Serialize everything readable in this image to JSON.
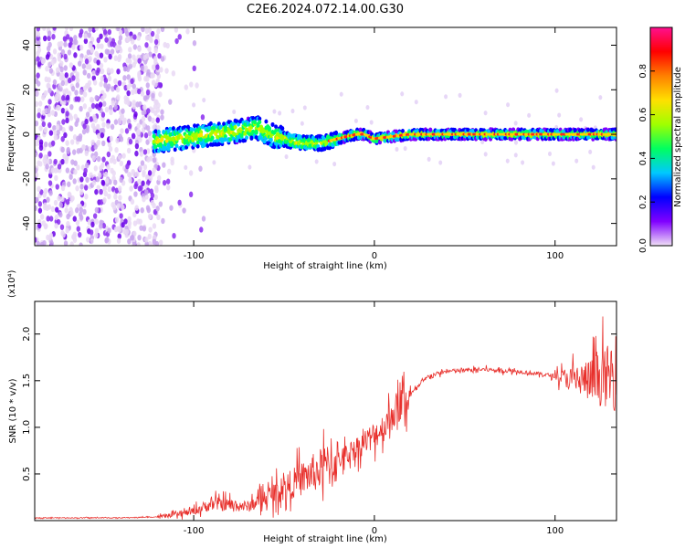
{
  "title": "C2E6.2024.072.14.00.G30",
  "chart_data": [
    {
      "type": "heatmap",
      "xlabel": "Height of straight line (km)",
      "ylabel": "Frequency (Hz)",
      "xlim": [
        -188,
        134
      ],
      "ylim": [
        -50,
        48
      ],
      "x_ticks": [
        "-100",
        "0",
        "100"
      ],
      "y_ticks": [
        "40",
        "20",
        "0",
        "-20",
        "-40"
      ],
      "colorbar": {
        "label": "Normalized spectral amplitude",
        "range": [
          0,
          1
        ],
        "ticks": [
          "0.0",
          "0.2",
          "0.4",
          "0.6",
          "0.8"
        ],
        "colors": [
          "#f0e0f6",
          "#8000ff",
          "#0000ff",
          "#00c8ff",
          "#00ff60",
          "#a0ff00",
          "#ffe000",
          "#ff8000",
          "#ff0000",
          "#ff1090"
        ]
      },
      "ridge": {
        "x": [
          -120,
          -110,
          -100,
          -90,
          -80,
          -70,
          -65,
          -60,
          -55,
          -50,
          -45,
          -40,
          -35,
          -30,
          -25,
          -20,
          -15,
          -10,
          -5,
          0,
          10,
          20,
          40,
          60,
          80,
          100,
          120,
          134
        ],
        "y": [
          -3,
          -2,
          -1,
          0,
          1,
          2,
          3,
          1,
          -1,
          -2,
          -3,
          -4,
          -4,
          -4,
          -3,
          -2,
          -1,
          0,
          0,
          -2,
          -1,
          0,
          0,
          0,
          0,
          0,
          0,
          0
        ]
      }
    },
    {
      "type": "line",
      "xlabel": "Height of straight line (km)",
      "ylabel": "SNR (10 * v/v)",
      "y_multiplier": "(x10⁴)",
      "xlim": [
        -188,
        134
      ],
      "ylim": [
        0,
        2.35
      ],
      "x_ticks": [
        "-100",
        "0",
        "100"
      ],
      "y_ticks": [
        "0.5",
        "1.0",
        "1.5",
        "2.0"
      ],
      "line_color": "#e8302c",
      "trend": {
        "x": [
          -188,
          -140,
          -120,
          -110,
          -100,
          -90,
          -80,
          -70,
          -60,
          -50,
          -40,
          -30,
          -20,
          -10,
          0,
          5,
          10,
          15,
          20,
          25,
          30,
          40,
          60,
          80,
          100,
          110,
          120,
          130,
          134
        ],
        "y": [
          0.03,
          0.03,
          0.04,
          0.06,
          0.1,
          0.18,
          0.17,
          0.15,
          0.25,
          0.35,
          0.45,
          0.55,
          0.65,
          0.78,
          0.92,
          1.0,
          1.15,
          1.25,
          1.35,
          1.45,
          1.55,
          1.6,
          1.62,
          1.6,
          1.55,
          1.52,
          1.5,
          1.55,
          1.55
        ]
      }
    }
  ]
}
